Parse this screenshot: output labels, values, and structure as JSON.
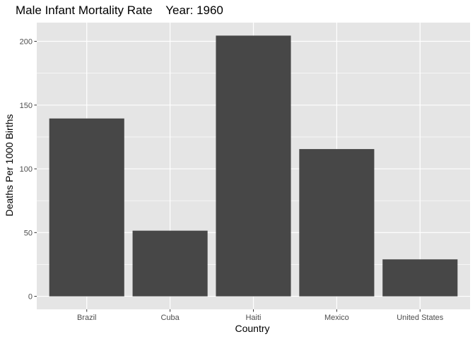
{
  "chart_data": {
    "type": "bar",
    "title": "Male Infant Mortality Rate    Year: 1960",
    "xlabel": "Country",
    "ylabel": "Deaths Per 1000 Births",
    "categories": [
      "Brazil",
      "Cuba",
      "Haiti",
      "Mexico",
      "United States"
    ],
    "values": [
      139.5,
      51.5,
      204.5,
      115.5,
      29.0
    ],
    "ylim": [
      -10.2,
      214.7
    ],
    "yticks": [
      0,
      50,
      100,
      150,
      200
    ],
    "ytick_labels": [
      "0",
      "50",
      "100",
      "150",
      "200"
    ],
    "grid": true,
    "legend": "none"
  },
  "colors": {
    "panel_background": "#e5e5e5",
    "grid_major": "#ffffff",
    "bar_fill": "#474747",
    "tick_text": "#4d4d4d",
    "text": "#000000"
  }
}
